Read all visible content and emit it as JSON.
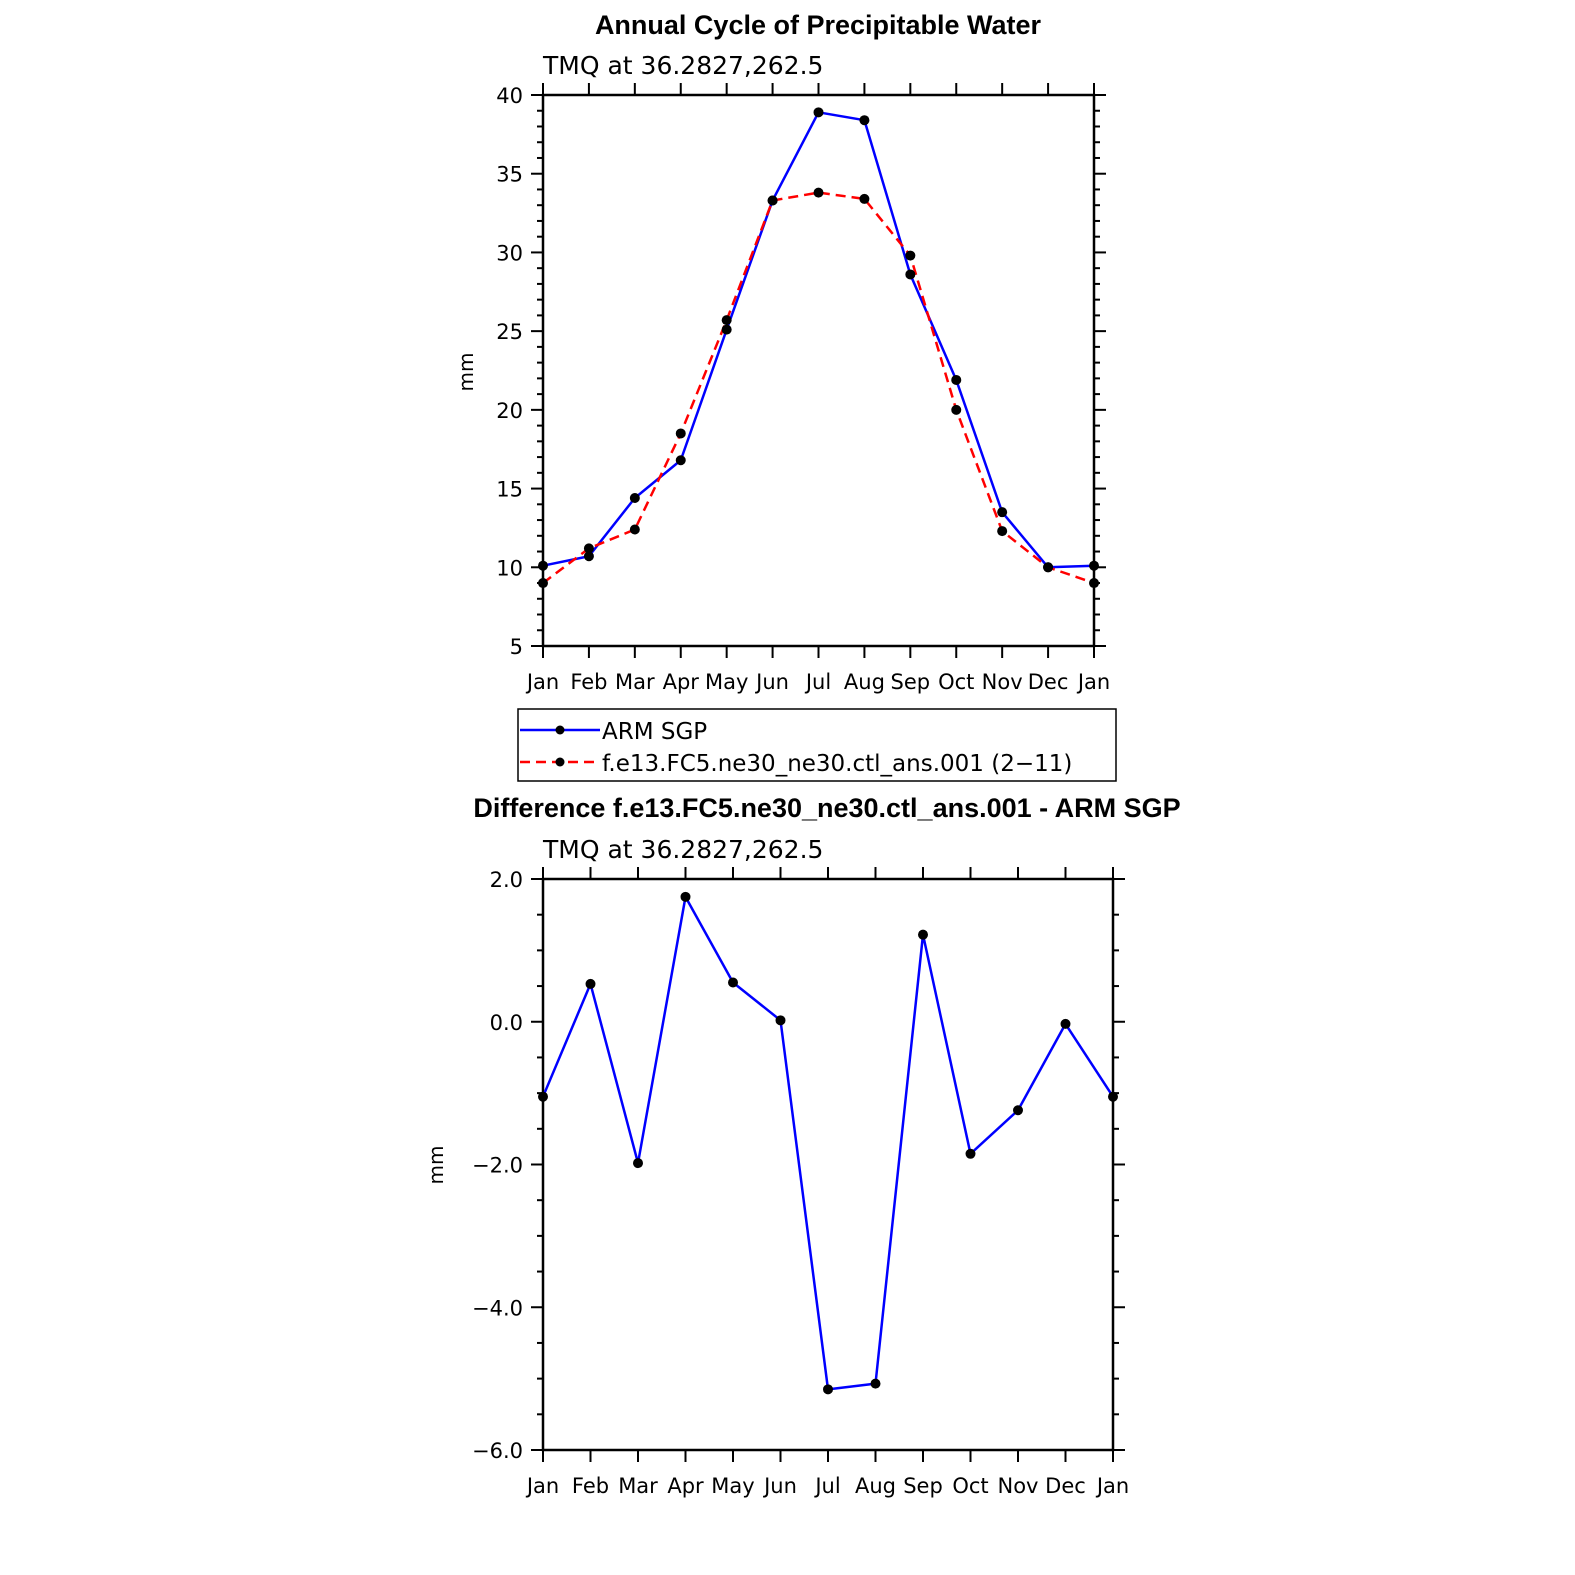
{
  "chart_data": [
    {
      "type": "line",
      "title": "Annual Cycle of Precipitable Water",
      "subtitle": "TMQ at 36.2827,262.5",
      "ylabel": "mm",
      "ylim": [
        5,
        40
      ],
      "yticks": [
        5,
        10,
        15,
        20,
        25,
        30,
        35,
        40
      ],
      "ytick_labels": [
        "5",
        "10",
        "15",
        "20",
        "25",
        "30",
        "35",
        "40"
      ],
      "categories": [
        "Jan",
        "Feb",
        "Mar",
        "Apr",
        "May",
        "Jun",
        "Jul",
        "Aug",
        "Sep",
        "Oct",
        "Nov",
        "Dec",
        "Jan"
      ],
      "series": [
        {
          "name": "ARM SGP",
          "color": "#0000ff",
          "dash": "solid",
          "values": [
            10.1,
            10.7,
            14.4,
            16.8,
            25.1,
            33.3,
            38.9,
            38.4,
            28.6,
            21.9,
            13.5,
            10.0,
            10.1
          ]
        },
        {
          "name": "f.e13.FC5.ne30_ne30.ctl_ans.001 (2−11)",
          "color": "#ff0000",
          "dash": "dashed",
          "values": [
            9.0,
            11.2,
            12.4,
            18.5,
            25.7,
            33.3,
            33.8,
            33.4,
            29.8,
            20.0,
            12.3,
            10.0,
            9.0
          ]
        }
      ],
      "legend": "below"
    },
    {
      "type": "line",
      "title": "Difference f.e13.FC5.ne30_ne30.ctl_ans.001 - ARM SGP",
      "subtitle": "TMQ at 36.2827,262.5",
      "ylabel": "mm",
      "ylim": [
        -6,
        2
      ],
      "yticks": [
        -6,
        -4,
        -2,
        0,
        2
      ],
      "ytick_labels": [
        "−6.0",
        "−4.0",
        "−2.0",
        "0.0",
        "2.0"
      ],
      "categories": [
        "Jan",
        "Feb",
        "Mar",
        "Apr",
        "May",
        "Jun",
        "Jul",
        "Aug",
        "Sep",
        "Oct",
        "Nov",
        "Dec",
        "Jan"
      ],
      "series": [
        {
          "color": "#0000ff",
          "dash": "solid",
          "values": [
            -1.05,
            0.53,
            -1.98,
            1.75,
            0.55,
            0.02,
            -5.15,
            -5.07,
            1.22,
            -1.85,
            -1.24,
            -0.03,
            -1.05
          ]
        }
      ]
    }
  ]
}
